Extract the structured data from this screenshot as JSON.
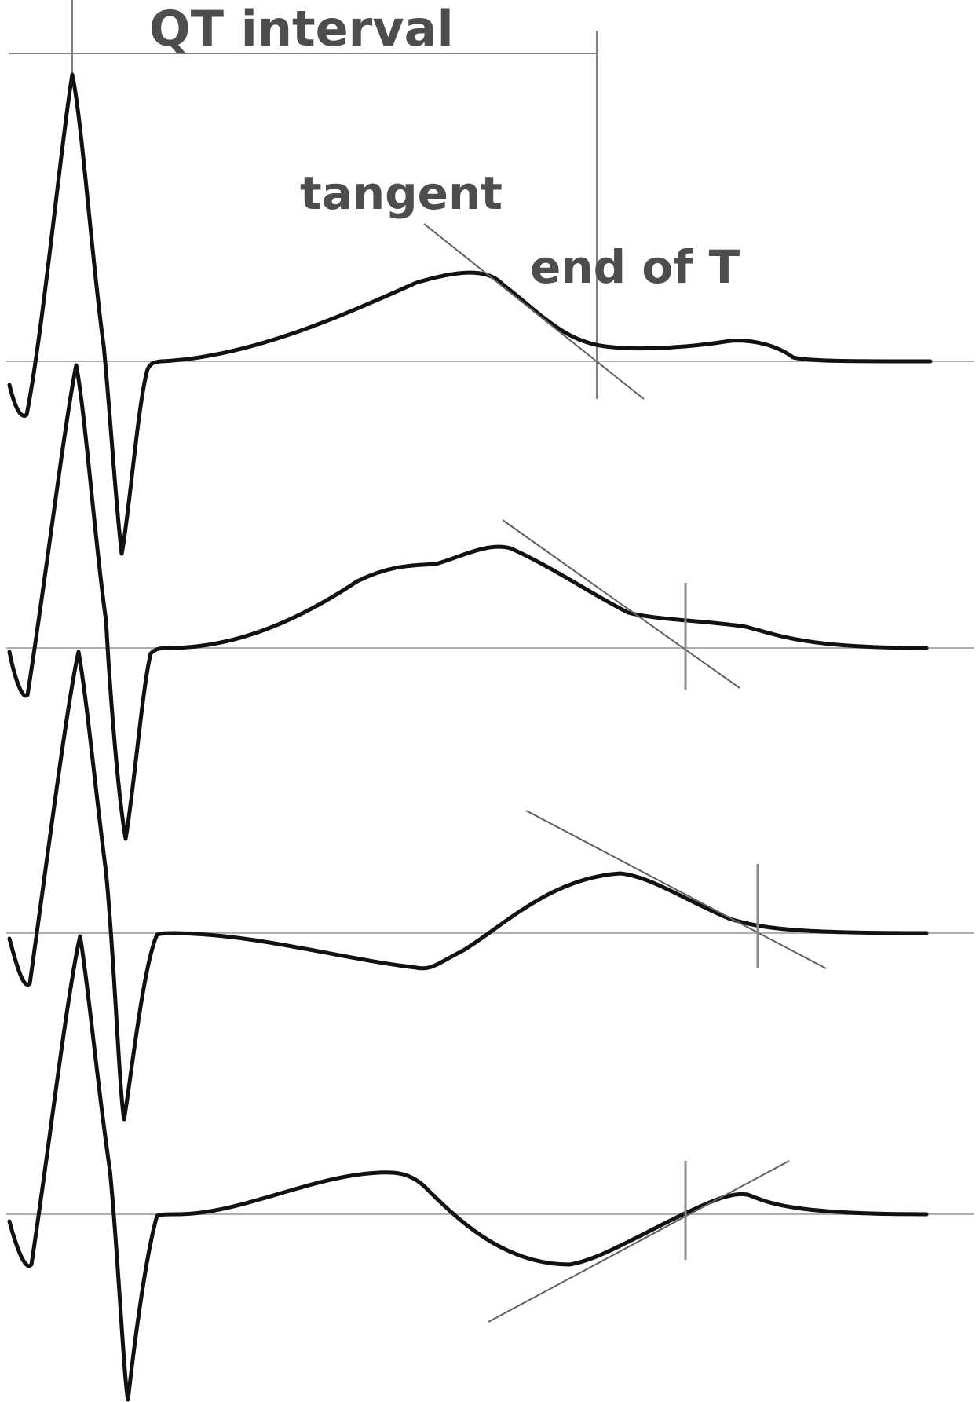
{
  "labels": {
    "qt_interval": "QT interval",
    "tangent": "tangent",
    "end_of_t": "end of T"
  },
  "colors": {
    "trace": "#111111",
    "baseline": "#b0b0b0",
    "guide": "#808080",
    "label": "#4d4d4d"
  },
  "traces": [
    {
      "name": "trace-1"
    },
    {
      "name": "trace-2"
    },
    {
      "name": "trace-3"
    },
    {
      "name": "trace-4"
    }
  ]
}
